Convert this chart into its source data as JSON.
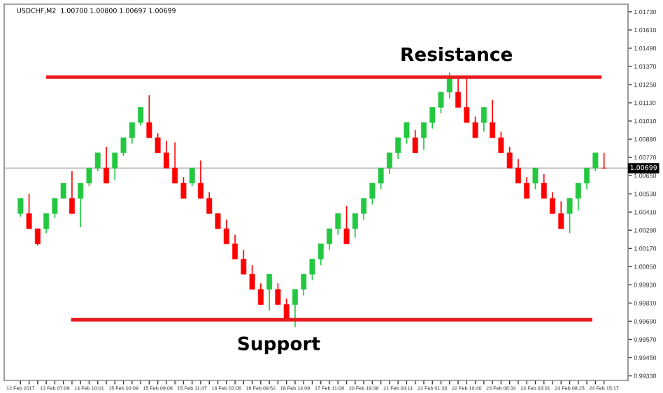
{
  "chart_data": {
    "type": "candlestick",
    "title": "USDCHF,M2  1.00700 1.00800 1.00697 1.00699",
    "categories": [
      "12 Feb 2017",
      null,
      null,
      null,
      "13 Feb 07:09",
      null,
      null,
      null,
      "14 Feb 10:01",
      null,
      null,
      null,
      "15 Feb 03:09",
      null,
      null,
      null,
      "15 Feb 09:08",
      null,
      null,
      null,
      "15 Feb 11:47",
      null,
      null,
      null,
      "16 Feb 03:06",
      null,
      null,
      null,
      "16 Feb 09:52",
      null,
      null,
      null,
      "16 Feb 14:09",
      null,
      null,
      null,
      "17 Feb 11:08",
      null,
      null,
      null,
      "20 Feb 19:38",
      null,
      null,
      null,
      "21 Feb 04:11",
      null,
      null,
      null,
      "22 Feb 01:30",
      null,
      null,
      null,
      "22 Feb 10:40",
      null,
      null,
      null,
      "23 Feb 06:34",
      null,
      null,
      null,
      "24 Feb 03:01",
      null,
      null,
      null,
      "24 Feb 08:25",
      null,
      null,
      null,
      "24 Feb 15:17"
    ],
    "ohlc": [
      [
        1.004,
        1.005,
        1.0038,
        1.005
      ],
      [
        1.004,
        1.0053,
        1.003,
        1.003
      ],
      [
        1.003,
        1.003,
        1.0019,
        1.002
      ],
      [
        1.003,
        1.004,
        1.0027,
        1.004
      ],
      [
        1.004,
        1.005,
        1.0037,
        1.005
      ],
      [
        1.005,
        1.006,
        1.005,
        1.006
      ],
      [
        1.005,
        1.0068,
        1.004,
        1.004
      ],
      [
        1.005,
        1.006,
        1.0031,
        1.006
      ],
      [
        1.006,
        1.007,
        1.0058,
        1.007
      ],
      [
        1.007,
        1.008,
        1.0068,
        1.008
      ],
      [
        1.007,
        1.0084,
        1.006,
        1.006
      ],
      [
        1.007,
        1.008,
        1.0062,
        1.008
      ],
      [
        1.008,
        1.009,
        1.0078,
        1.009
      ],
      [
        1.009,
        1.01,
        1.0086,
        1.01
      ],
      [
        1.01,
        1.011,
        1.0098,
        1.011
      ],
      [
        1.01,
        1.0118,
        1.009,
        1.009
      ],
      [
        1.009,
        1.0093,
        1.008,
        1.008
      ],
      [
        1.008,
        1.0088,
        1.007,
        1.007
      ],
      [
        1.007,
        1.0087,
        1.006,
        1.006
      ],
      [
        1.006,
        1.0064,
        1.005,
        1.005
      ],
      [
        1.006,
        1.007,
        1.0058,
        1.007
      ],
      [
        1.006,
        1.0075,
        1.005,
        1.005
      ],
      [
        1.005,
        1.0054,
        1.004,
        1.004
      ],
      [
        1.004,
        1.004,
        1.003,
        1.003
      ],
      [
        1.003,
        1.0036,
        1.002,
        1.002
      ],
      [
        1.002,
        1.0026,
        1.001,
        1.001
      ],
      [
        1.001,
        1.0016,
        1.0,
        1.0
      ],
      [
        1.0,
        1.0006,
        0.999,
        0.999
      ],
      [
        0.999,
        0.9994,
        0.998,
        0.998
      ],
      [
        0.999,
        1.0,
        0.9976,
        1.0
      ],
      [
        0.999,
        0.9994,
        0.998,
        0.998
      ],
      [
        0.998,
        0.9984,
        0.997,
        0.997
      ],
      [
        0.998,
        0.999,
        0.9965,
        0.999
      ],
      [
        0.999,
        1.0,
        0.9986,
        1.0
      ],
      [
        1.0,
        1.001,
        0.9996,
        1.001
      ],
      [
        1.001,
        1.002,
        1.0006,
        1.002
      ],
      [
        1.002,
        1.003,
        1.0016,
        1.003
      ],
      [
        1.003,
        1.004,
        1.0026,
        1.004
      ],
      [
        1.003,
        1.0045,
        1.002,
        1.002
      ],
      [
        1.003,
        1.004,
        1.0024,
        1.004
      ],
      [
        1.004,
        1.005,
        1.0036,
        1.005
      ],
      [
        1.005,
        1.006,
        1.0046,
        1.006
      ],
      [
        1.006,
        1.007,
        1.0056,
        1.007
      ],
      [
        1.007,
        1.008,
        1.0066,
        1.008
      ],
      [
        1.008,
        1.009,
        1.0076,
        1.009
      ],
      [
        1.009,
        1.01,
        1.0086,
        1.01
      ],
      [
        1.009,
        1.0095,
        1.008,
        1.008
      ],
      [
        1.009,
        1.01,
        1.0082,
        1.01
      ],
      [
        1.01,
        1.011,
        1.0096,
        1.011
      ],
      [
        1.011,
        1.012,
        1.0106,
        1.012
      ],
      [
        1.012,
        1.0133,
        1.0116,
        1.013
      ],
      [
        1.012,
        1.013,
        1.011,
        1.011
      ],
      [
        1.011,
        1.013,
        1.01,
        1.01
      ],
      [
        1.01,
        1.0104,
        1.009,
        1.009
      ],
      [
        1.01,
        1.011,
        1.0094,
        1.011
      ],
      [
        1.01,
        1.0115,
        1.009,
        1.009
      ],
      [
        1.009,
        1.0094,
        1.008,
        1.008
      ],
      [
        1.008,
        1.0084,
        1.007,
        1.007
      ],
      [
        1.007,
        1.0076,
        1.006,
        1.006
      ],
      [
        1.006,
        1.0064,
        1.005,
        1.005
      ],
      [
        1.006,
        1.007,
        1.0056,
        1.007
      ],
      [
        1.006,
        1.0066,
        1.005,
        1.005
      ],
      [
        1.005,
        1.0054,
        1.004,
        1.004
      ],
      [
        1.004,
        1.0048,
        1.003,
        1.003
      ],
      [
        1.004,
        1.005,
        1.0027,
        1.005
      ],
      [
        1.005,
        1.006,
        1.0042,
        1.006
      ],
      [
        1.006,
        1.007,
        1.0056,
        1.007
      ],
      [
        1.007,
        1.008,
        1.0068,
        1.008
      ],
      [
        1.007,
        1.008,
        1.00697,
        1.00699
      ]
    ],
    "colors": [
      "#23c840",
      "#ff0000",
      "#ff0000",
      "#23c840",
      "#23c840",
      "#23c840",
      "#ff0000",
      "#23c840",
      "#23c840",
      "#23c840",
      "#ff0000",
      "#23c840",
      "#23c840",
      "#23c840",
      "#23c840",
      "#ff0000",
      "#ff0000",
      "#ff0000",
      "#ff0000",
      "#ff0000",
      "#23c840",
      "#ff0000",
      "#ff0000",
      "#ff0000",
      "#ff0000",
      "#ff0000",
      "#ff0000",
      "#ff0000",
      "#ff0000",
      "#23c840",
      "#ff0000",
      "#ff0000",
      "#23c840",
      "#23c840",
      "#23c840",
      "#23c840",
      "#23c840",
      "#23c840",
      "#ff0000",
      "#23c840",
      "#23c840",
      "#23c840",
      "#23c840",
      "#23c840",
      "#23c840",
      "#23c840",
      "#ff0000",
      "#23c840",
      "#23c840",
      "#23c840",
      "#23c840",
      "#ff0000",
      "#ff0000",
      "#ff0000",
      "#23c840",
      "#ff0000",
      "#ff0000",
      "#ff0000",
      "#ff0000",
      "#ff0000",
      "#23c840",
      "#ff0000",
      "#ff0000",
      "#ff0000",
      "#23c840",
      "#23c840",
      "#23c840",
      "#23c840",
      "#ff0000"
    ],
    "ylim": [
      0.993,
      1.0178
    ],
    "yticks": [
      {
        "value": 1.0173,
        "label": "1.01730"
      },
      {
        "value": 1.0161,
        "label": "1.01610"
      },
      {
        "value": 1.0149,
        "label": "1.01490"
      },
      {
        "value": 1.0137,
        "label": "1.01370"
      },
      {
        "value": 1.0125,
        "label": "1.01250"
      },
      {
        "value": 1.0113,
        "label": "1.01130"
      },
      {
        "value": 1.0101,
        "label": "1.01010"
      },
      {
        "value": 1.0089,
        "label": "1.00890"
      },
      {
        "value": 1.0077,
        "label": "1.00770"
      },
      {
        "value": 1.0065,
        "label": "1.00650"
      },
      {
        "value": 1.0053,
        "label": "1.00530"
      },
      {
        "value": 1.0041,
        "label": "1.00410"
      },
      {
        "value": 1.0029,
        "label": "1.00290"
      },
      {
        "value": 1.0017,
        "label": "1.00170"
      },
      {
        "value": 1.0005,
        "label": "1.00050"
      },
      {
        "value": 0.9993,
        "label": "0.99930"
      },
      {
        "value": 0.9981,
        "label": "0.99810"
      },
      {
        "value": 0.9969,
        "label": "0.99690"
      },
      {
        "value": 0.9957,
        "label": "0.99570"
      },
      {
        "value": 0.9945,
        "label": "0.99450"
      },
      {
        "value": 0.9933,
        "label": "0.99330"
      }
    ],
    "ref_lines": [
      {
        "axis": "y",
        "value": 1.013,
        "label": "Resistance",
        "color": "#e8191c"
      },
      {
        "axis": "y",
        "value": 0.997,
        "label": "Support",
        "color": "#e8191c"
      },
      {
        "axis": "y",
        "value": 1.00699,
        "label": "1.00699",
        "color": "#c0c0c0"
      }
    ],
    "grid": false
  }
}
